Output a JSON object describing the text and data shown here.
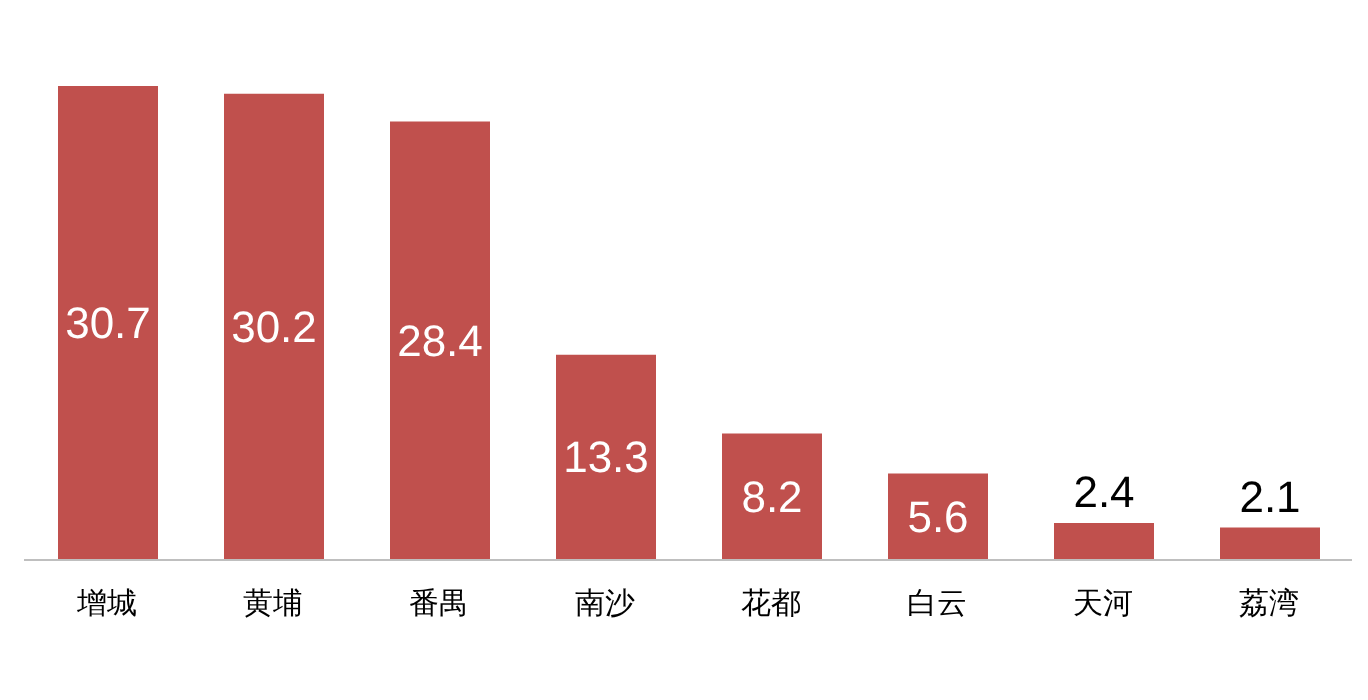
{
  "chart_data": {
    "type": "bar",
    "categories": [
      "增城",
      "黄埔",
      "番禺",
      "南沙",
      "花都",
      "白云",
      "天河",
      "荔湾"
    ],
    "values": [
      30.7,
      30.2,
      28.4,
      13.3,
      8.2,
      5.6,
      2.4,
      2.1
    ],
    "color": "#c0504d",
    "data_labels": true
  }
}
